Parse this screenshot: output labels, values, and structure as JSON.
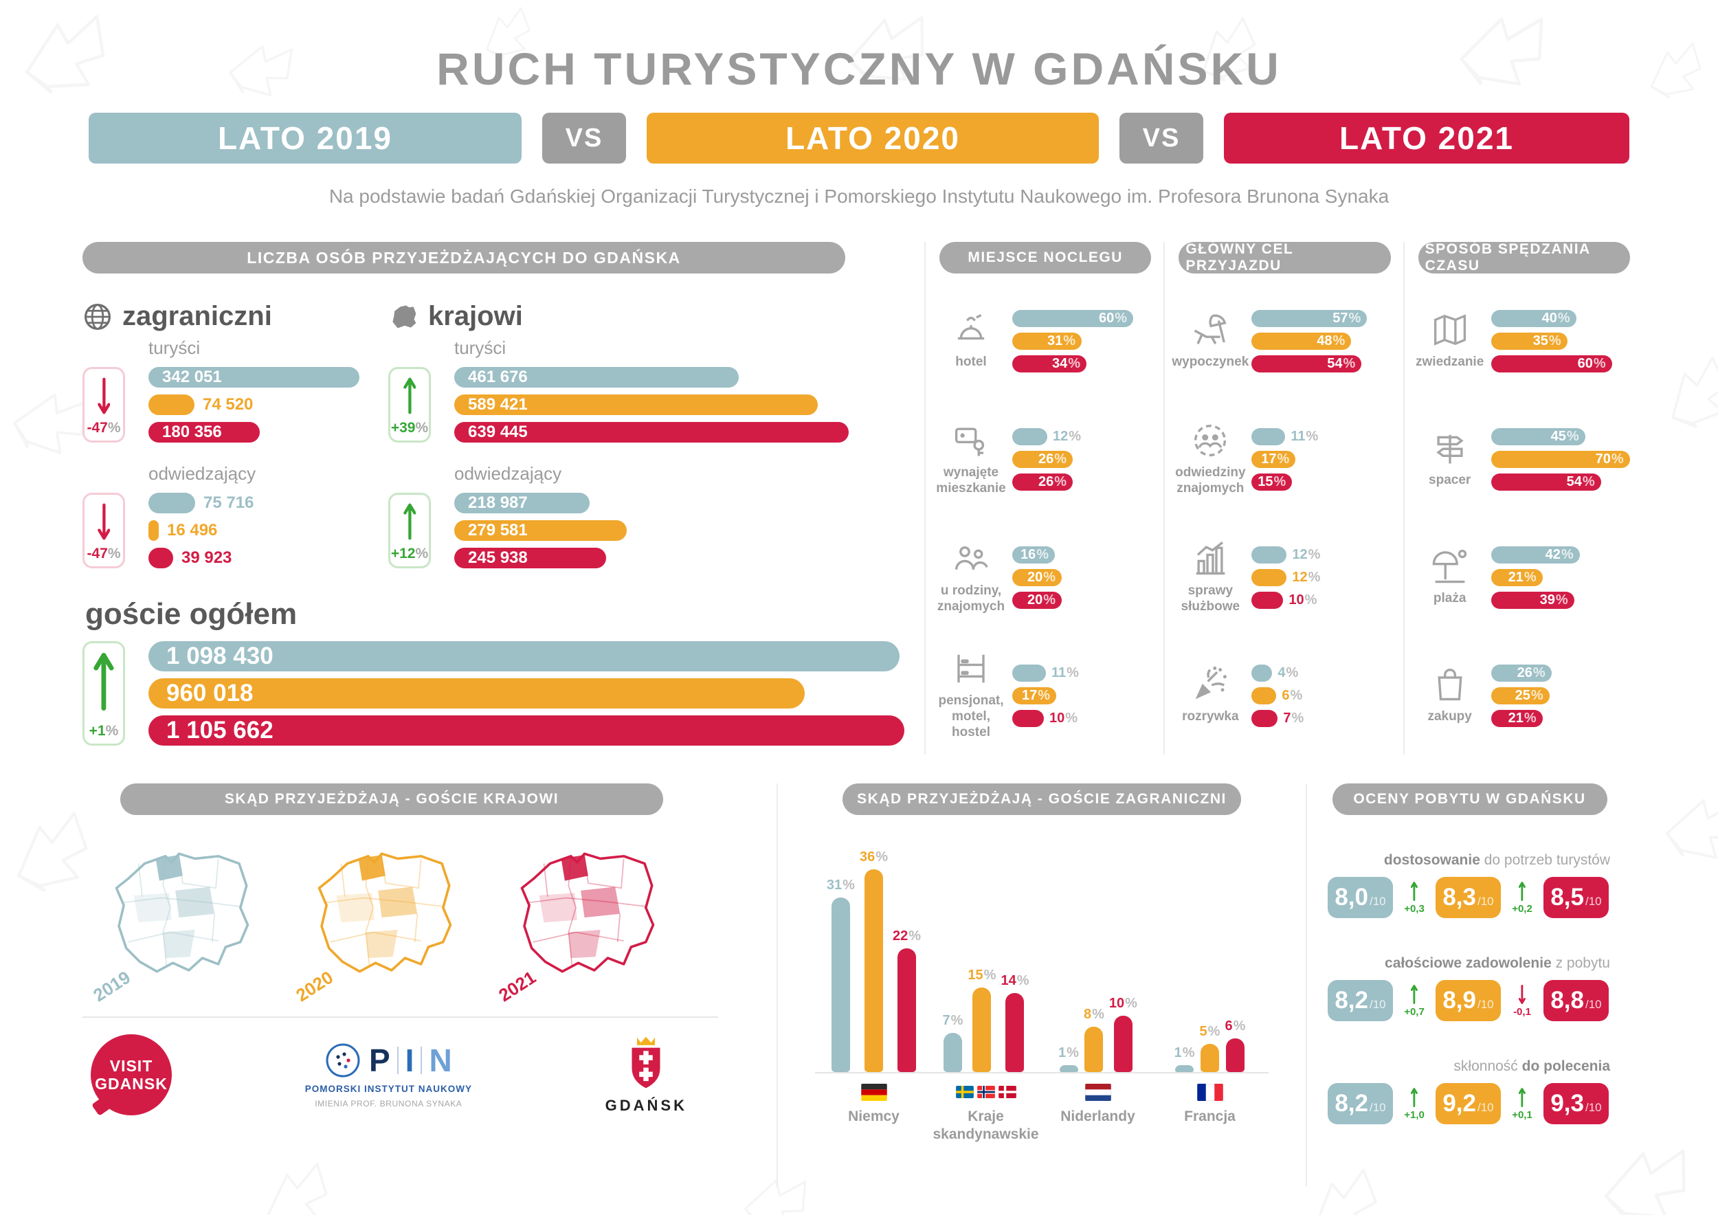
{
  "page": {
    "title": "RUCH TURYSTYCZNY W GDAŃSKU",
    "subtitle": "Na podstawie badań Gdańskiej Organizacji Turystycznej i Pomorskiego Instytutu Naukowego im. Profesora Brunona Synaka",
    "vs": "VS",
    "years": [
      {
        "id": "2019",
        "label": "LATO 2019",
        "color": "#9dbfc6"
      },
      {
        "id": "2020",
        "label": "LATO 2020",
        "color": "#f0a72b"
      },
      {
        "id": "2021",
        "label": "LATO 2021",
        "color": "#d21c46"
      }
    ]
  },
  "theme": {
    "teal": "#9dbfc6",
    "orange": "#f0a72b",
    "red": "#d21c46",
    "green": "#36a635",
    "gray": "#a9a9a9"
  },
  "arrivals": {
    "header": "LICZBA OSÓB PRZYJEŻDŻAJĄCYCH DO GDAŃSKA",
    "groups": [
      {
        "name": "zagraniczni",
        "icon": "globe-icon",
        "subgroups": [
          {
            "label": "turyści",
            "change": "-47",
            "unit": "%",
            "direction": "down",
            "values": [
              342051,
              74520,
              180356
            ],
            "display": [
              "342 051",
              "74 520",
              "180 356"
            ]
          },
          {
            "label": "odwiedzający",
            "change": "-47",
            "unit": "%",
            "direction": "down",
            "values": [
              75716,
              16496,
              39923
            ],
            "display": [
              "75 716",
              "16 496",
              "39 923"
            ]
          }
        ]
      },
      {
        "name": "krajowi",
        "icon": "poland-icon",
        "subgroups": [
          {
            "label": "turyści",
            "change": "+39",
            "unit": "%",
            "direction": "up",
            "values": [
              461676,
              589421,
              639445
            ],
            "display": [
              "461 676",
              "589 421",
              "639 445"
            ]
          },
          {
            "label": "odwiedzający",
            "change": "+12",
            "unit": "%",
            "direction": "up",
            "values": [
              218987,
              279581,
              245938
            ],
            "display": [
              "218 987",
              "279 581",
              "245 938"
            ]
          }
        ]
      }
    ],
    "total": {
      "label": "goście ogółem",
      "change": "+1",
      "unit": "%",
      "direction": "up",
      "values": [
        1098430,
        960018,
        1105662
      ],
      "display": [
        "1 098 430",
        "960 018",
        "1 105 662"
      ]
    }
  },
  "percent_columns": [
    {
      "id": "miejsce-noclegu",
      "header": "MIEJSCE NOCLEGU",
      "rows": [
        {
          "label": "hotel",
          "icon": "reception-bell-icon",
          "values": [
            60,
            31,
            34
          ]
        },
        {
          "label": "wynajęte mieszkanie",
          "icon": "apartment-key-icon",
          "values": [
            12,
            26,
            26
          ]
        },
        {
          "label": "u rodziny, znajomych",
          "icon": "family-icon",
          "values": [
            16,
            20,
            20
          ]
        },
        {
          "label": "pensjonat, motel, hostel",
          "icon": "bunk-bed-icon",
          "values": [
            11,
            17,
            10
          ]
        }
      ]
    },
    {
      "id": "glowny-cel-przyjazdu",
      "header": "GŁÓWNY CEL PRZYJAZDU",
      "rows": [
        {
          "label": "wypoczynek",
          "icon": "beach-lounger-icon",
          "values": [
            57,
            48,
            54
          ]
        },
        {
          "label": "odwiedziny znajomych",
          "icon": "friends-circle-icon",
          "values": [
            11,
            17,
            15
          ]
        },
        {
          "label": "sprawy służbowe",
          "icon": "business-chart-icon",
          "values": [
            12,
            12,
            10
          ]
        },
        {
          "label": "rozrywka",
          "icon": "party-popper-icon",
          "values": [
            4,
            6,
            7
          ]
        }
      ]
    },
    {
      "id": "sposob-spedzania-czasu",
      "header": "SPOSÓB SPĘDZANIA CZASU",
      "rows": [
        {
          "label": "zwiedzanie",
          "icon": "map-icon",
          "values": [
            40,
            35,
            60
          ]
        },
        {
          "label": "spacer",
          "icon": "signpost-icon",
          "values": [
            45,
            70,
            54
          ]
        },
        {
          "label": "plaża",
          "icon": "beach-umbrella-icon",
          "values": [
            42,
            21,
            39
          ]
        },
        {
          "label": "zakupy",
          "icon": "shopping-bag-icon",
          "values": [
            26,
            25,
            21
          ]
        }
      ]
    }
  ],
  "domestic_origin": {
    "header": "SKĄD PRZYJEŻDŻAJĄ - GOŚCIE KRAJOWI",
    "maps": [
      {
        "year": "2019",
        "color": "#9dbfc6"
      },
      {
        "year": "2020",
        "color": "#f0a72b"
      },
      {
        "year": "2021",
        "color": "#d21c46"
      }
    ]
  },
  "foreign_origin": {
    "header": "SKĄD PRZYJEŻDŻAJĄ - GOŚCIE ZAGRANICZNI",
    "countries": [
      {
        "label": "Niemcy",
        "flag": "germany",
        "values": [
          31,
          36,
          22
        ]
      },
      {
        "label": "Kraje skandynawskie",
        "flag": "scandinavia",
        "values": [
          7,
          15,
          14
        ]
      },
      {
        "label": "Niderlandy",
        "flag": "netherlands",
        "values": [
          1,
          8,
          10
        ]
      },
      {
        "label": "Francja",
        "flag": "france",
        "values": [
          1,
          5,
          6
        ]
      }
    ]
  },
  "ratings": {
    "header": "OCENY POBYTU W GDAŃSKU",
    "out_of": "/10",
    "rows": [
      {
        "label_parts": [
          {
            "t": "dostosowanie",
            "b": true
          },
          {
            "t": " do potrzeb turystów",
            "b": false
          }
        ],
        "scores": [
          "8,0",
          "8,3",
          "8,5"
        ],
        "deltas": [
          {
            "value": "+0,3",
            "direction": "up"
          },
          {
            "value": "+0,2",
            "direction": "up"
          }
        ]
      },
      {
        "label_parts": [
          {
            "t": "całościowe zadowolenie",
            "b": true
          },
          {
            "t": " z pobytu",
            "b": false
          }
        ],
        "scores": [
          "8,2",
          "8,9",
          "8,8"
        ],
        "deltas": [
          {
            "value": "+0,7",
            "direction": "up"
          },
          {
            "value": "-0,1",
            "direction": "down"
          }
        ]
      },
      {
        "label_parts": [
          {
            "t": "skłonność ",
            "b": false
          },
          {
            "t": "do polecenia",
            "b": true
          }
        ],
        "scores": [
          "8,2",
          "9,2",
          "9,3"
        ],
        "deltas": [
          {
            "value": "+1,0",
            "direction": "up"
          },
          {
            "value": "+0,1",
            "direction": "up"
          }
        ]
      }
    ]
  },
  "footer": {
    "visit_line1": "VISIT",
    "visit_line2": "GDANSK",
    "pin_letters": [
      "P",
      "I",
      "N"
    ],
    "pin_line1": "POMORSKI INSTYTUT NAUKOWY",
    "pin_line2": "IMIENIA PROF. BRUNONA SYNAKA",
    "gdansk_label": "GDAŃSK"
  },
  "chart_data": [
    {
      "type": "bar",
      "orientation": "horizontal",
      "title": "LICZBA OSÓB PRZYJEŻDŻAJĄCYCH DO GDAŃSKA",
      "series_labels": [
        "LATO 2019",
        "LATO 2020",
        "LATO 2021"
      ],
      "groups": [
        {
          "name": "zagraniczni turyści",
          "values": [
            342051,
            74520,
            180356
          ],
          "change": "-47%"
        },
        {
          "name": "zagraniczni odwiedzający",
          "values": [
            75716,
            16496,
            39923
          ],
          "change": "-47%"
        },
        {
          "name": "krajowi turyści",
          "values": [
            461676,
            589421,
            639445
          ],
          "change": "+39%"
        },
        {
          "name": "krajowi odwiedzający",
          "values": [
            218987,
            279581,
            245938
          ],
          "change": "+12%"
        },
        {
          "name": "goście ogółem",
          "values": [
            1098430,
            960018,
            1105662
          ],
          "change": "+1%"
        }
      ]
    },
    {
      "type": "bar",
      "orientation": "horizontal",
      "unit": "%",
      "title": "MIEJSCE NOCLEGU",
      "categories": [
        "hotel",
        "wynajęte mieszkanie",
        "u rodziny, znajomych",
        "pensjonat, motel, hostel"
      ],
      "series": [
        {
          "name": "LATO 2019",
          "values": [
            60,
            12,
            16,
            11
          ]
        },
        {
          "name": "LATO 2020",
          "values": [
            31,
            26,
            20,
            17
          ]
        },
        {
          "name": "LATO 2021",
          "values": [
            34,
            26,
            20,
            10
          ]
        }
      ]
    },
    {
      "type": "bar",
      "orientation": "horizontal",
      "unit": "%",
      "title": "GŁÓWNY CEL PRZYJAZDU",
      "categories": [
        "wypoczynek",
        "odwiedziny znajomych",
        "sprawy służbowe",
        "rozrywka"
      ],
      "series": [
        {
          "name": "LATO 2019",
          "values": [
            57,
            11,
            12,
            4
          ]
        },
        {
          "name": "LATO 2020",
          "values": [
            48,
            17,
            12,
            6
          ]
        },
        {
          "name": "LATO 2021",
          "values": [
            54,
            15,
            10,
            7
          ]
        }
      ]
    },
    {
      "type": "bar",
      "orientation": "horizontal",
      "unit": "%",
      "title": "SPOSÓB SPĘDZANIA CZASU",
      "categories": [
        "zwiedzanie",
        "spacer",
        "plaża",
        "zakupy"
      ],
      "series": [
        {
          "name": "LATO 2019",
          "values": [
            40,
            45,
            42,
            26
          ]
        },
        {
          "name": "LATO 2020",
          "values": [
            35,
            70,
            21,
            25
          ]
        },
        {
          "name": "LATO 2021",
          "values": [
            60,
            54,
            39,
            21
          ]
        }
      ]
    },
    {
      "type": "bar",
      "orientation": "vertical",
      "unit": "%",
      "title": "SKĄD PRZYJEŻDŻAJĄ - GOŚCIE ZAGRANICZNI",
      "categories": [
        "Niemcy",
        "Kraje skandynawskie",
        "Niderlandy",
        "Francja"
      ],
      "series": [
        {
          "name": "LATO 2019",
          "values": [
            31,
            7,
            1,
            1
          ]
        },
        {
          "name": "LATO 2020",
          "values": [
            36,
            15,
            8,
            5
          ]
        },
        {
          "name": "LATO 2021",
          "values": [
            22,
            14,
            10,
            6
          ]
        }
      ]
    },
    {
      "type": "table",
      "title": "OCENY POBYTU W GDAŃSKU",
      "scale": "/10",
      "rows": [
        {
          "name": "dostosowanie do potrzeb turystów",
          "values": [
            "8,0",
            "8,3",
            "8,5"
          ],
          "deltas": [
            "+0,3",
            "+0,2"
          ]
        },
        {
          "name": "całościowe zadowolenie z pobytu",
          "values": [
            "8,2",
            "8,9",
            "8,8"
          ],
          "deltas": [
            "+0,7",
            "-0,1"
          ]
        },
        {
          "name": "skłonność do polecenia",
          "values": [
            "8,2",
            "9,2",
            "9,3"
          ],
          "deltas": [
            "+1,0",
            "+0,1"
          ]
        }
      ]
    }
  ]
}
